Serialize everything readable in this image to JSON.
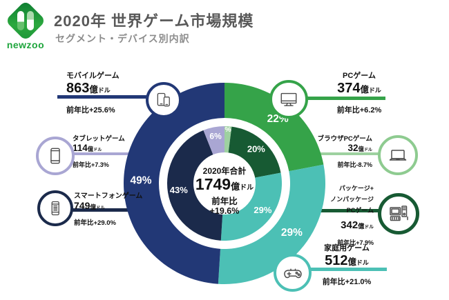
{
  "header": {
    "logo_text": "newzoo",
    "title": "2020年 世界ゲーム市場規模",
    "subtitle": "セグメント・デバイス別内訳"
  },
  "units": {
    "oku": "億",
    "doru": "ドル"
  },
  "center": {
    "title": "2020年合計",
    "value": "1749",
    "yoy_label": "前年比",
    "yoy_value": "+19.6%"
  },
  "callouts": {
    "mobile": {
      "name": "モバイルゲーム",
      "value": "863",
      "yoy": "前年比+25.6%"
    },
    "pc": {
      "name": "PCゲーム",
      "value": "374",
      "yoy": "前年比+6.2%"
    },
    "tablet": {
      "name": "タブレットゲーム",
      "value": "114",
      "yoy": "前年比+7.3%"
    },
    "smartphone": {
      "name": "スマートフォンゲーム",
      "value": "749",
      "yoy": "前年比+29.0%"
    },
    "browser": {
      "name": "ブラウザPCゲーム",
      "value": "32",
      "yoy": "前年比-8.7%"
    },
    "package": {
      "name1": "パッケージ+",
      "name2": "ノンパッケージ",
      "name3": "PCゲーム",
      "value": "342",
      "yoy": "前年比+7.9%"
    },
    "console": {
      "name": "家庭用ゲーム",
      "value": "512",
      "yoy": "前年比+21.0%"
    }
  },
  "colors": {
    "navy": "#223876",
    "dark_navy": "#1b2a4b",
    "lavender": "#a9a6d3",
    "green": "#35a349",
    "light_green": "#9ed1a0",
    "dark_green": "#175a33",
    "teal": "#4cc0b5",
    "title_gray": "#585858",
    "subtitle_gray": "#8c8c8c",
    "logo_green": "#1ea53c"
  },
  "chart_data": {
    "type": "donut",
    "title": "2020年 世界ゲーム市場規模",
    "subtitle": "セグメント・デバイス別内訳",
    "total": {
      "label": "2020年合計",
      "value": 1749,
      "unit": "億ドル",
      "yoy": "+19.6%"
    },
    "start_angle_deg": 0,
    "direction": "clockwise",
    "outer_ring": [
      {
        "id": "pc",
        "label": "PCゲーム",
        "percent": 22,
        "value": 374,
        "unit": "億ドル",
        "yoy": "+6.2%",
        "color": "#35a349"
      },
      {
        "id": "console",
        "label": "家庭用ゲーム",
        "percent": 29,
        "value": 512,
        "unit": "億ドル",
        "yoy": "+21.0%",
        "color": "#4cc0b5"
      },
      {
        "id": "mobile",
        "label": "モバイルゲーム",
        "percent": 49,
        "value": 863,
        "unit": "億ドル",
        "yoy": "+25.6%",
        "color": "#223876"
      }
    ],
    "inner_ring": [
      {
        "id": "browser-pc",
        "label": "ブラウザPCゲーム",
        "percent": 2,
        "value": 32,
        "unit": "億ドル",
        "yoy": "-8.7%",
        "color": "#9ed1a0"
      },
      {
        "id": "package-pc",
        "label": "パッケージ+ノンパッケージPCゲーム",
        "percent": 20,
        "value": 342,
        "unit": "億ドル",
        "yoy": "+7.9%",
        "color": "#175a33"
      },
      {
        "id": "console",
        "label": "家庭用ゲーム",
        "percent": 29,
        "value": 512,
        "unit": "億ドル",
        "yoy": "+21.0%",
        "color": "#4cc0b5"
      },
      {
        "id": "smartphone",
        "label": "スマートフォンゲーム",
        "percent": 43,
        "value": 749,
        "unit": "億ドル",
        "yoy": "+29.0%",
        "color": "#1b2a4b"
      },
      {
        "id": "tablet",
        "label": "タブレットゲーム",
        "percent": 6,
        "value": 114,
        "unit": "億ドル",
        "yoy": "+7.3%",
        "color": "#a9a6d3"
      }
    ]
  }
}
